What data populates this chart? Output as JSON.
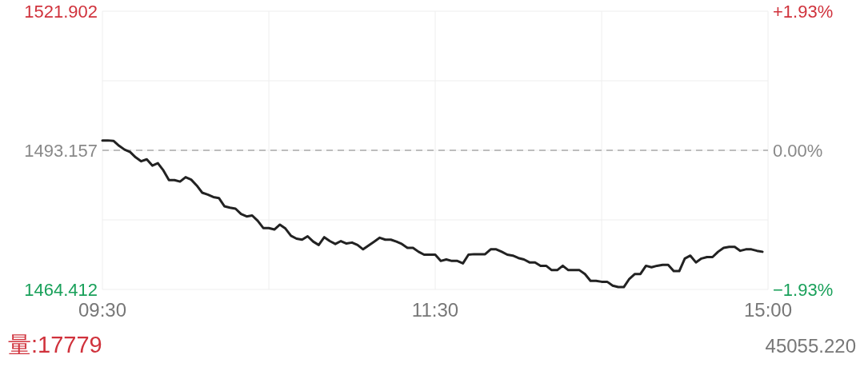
{
  "chart_data": {
    "type": "line",
    "categories": [
      "09:30",
      null,
      null,
      null,
      null,
      null,
      null,
      null,
      null,
      null,
      null,
      null,
      null,
      null,
      null,
      null,
      null,
      null,
      null,
      null,
      null,
      null,
      null,
      null,
      null,
      null,
      null,
      null,
      null,
      null,
      null,
      null,
      null,
      null,
      null,
      null,
      null,
      null,
      null,
      null,
      null,
      null,
      null,
      null,
      null,
      null,
      null,
      null,
      null,
      null,
      null,
      null,
      null,
      null,
      null,
      null,
      null,
      null,
      null,
      null,
      "11:30",
      null,
      null,
      null,
      null,
      null,
      null,
      null,
      null,
      null,
      null,
      null,
      null,
      null,
      null,
      null,
      null,
      null,
      null,
      null,
      null,
      null,
      null,
      null,
      null,
      null,
      null,
      null,
      null,
      null,
      null,
      null,
      null,
      null,
      null,
      null,
      null,
      null,
      null,
      null,
      null,
      null,
      null,
      null,
      null,
      null,
      null,
      null,
      null,
      null,
      null,
      null,
      null,
      null,
      null,
      null,
      null,
      null,
      null,
      null,
      "15:00"
    ],
    "series": [
      {
        "color": "#222222",
        "values": [
          1495.2,
          1495.2,
          1495.1,
          1494.1,
          1493.3,
          1492.8,
          1491.7,
          1490.9,
          1491.3,
          1490.0,
          1490.5,
          1489.0,
          1487.0,
          1487.0,
          1486.7,
          1487.6,
          1487.1,
          1485.9,
          1484.4,
          1484.0,
          1483.5,
          1483.3,
          1481.6,
          1481.3,
          1481.1,
          1480.0,
          1479.5,
          1479.7,
          1478.6,
          1477.1,
          1477.1,
          1476.8,
          1477.8,
          1477.0,
          1475.5,
          1474.9,
          1474.7,
          1475.4,
          1474.3,
          1473.6,
          1475.2,
          1474.4,
          1473.8,
          1474.4,
          1473.9,
          1474.1,
          1473.6,
          1472.7,
          1473.5,
          1474.3,
          1475.1,
          1474.7,
          1474.7,
          1474.3,
          1473.8,
          1473.0,
          1473.0,
          1472.2,
          1471.6,
          1471.6,
          1471.6,
          1470.3,
          1470.6,
          1470.3,
          1470.3,
          1469.8,
          1471.6,
          1471.7,
          1471.7,
          1471.7,
          1472.7,
          1472.7,
          1472.2,
          1471.6,
          1471.4,
          1470.9,
          1470.6,
          1470.0,
          1470.0,
          1469.3,
          1469.3,
          1468.4,
          1468.4,
          1469.3,
          1468.4,
          1468.4,
          1468.4,
          1467.6,
          1466.2,
          1466.2,
          1466.0,
          1466.0,
          1465.2,
          1464.9,
          1464.9,
          1466.6,
          1467.6,
          1467.6,
          1469.3,
          1469.0,
          1469.3,
          1469.5,
          1469.5,
          1468.2,
          1468.2,
          1470.8,
          1471.4,
          1470.0,
          1470.8,
          1471.1,
          1471.1,
          1472.2,
          1473.0,
          1473.2,
          1473.2,
          1472.4,
          1472.7,
          1472.7,
          1472.4,
          1472.2,
          null
        ]
      }
    ],
    "ylim": [
      1464.412,
      1521.902
    ],
    "yticks": [
      1521.902,
      1493.157,
      1464.412
    ],
    "y2lim": [
      -1.93,
      1.93
    ],
    "y2ticks": [
      {
        "value": 1.93,
        "label": "+1.93%"
      },
      {
        "value": 0,
        "label": "0.00%"
      },
      {
        "value": -1.93,
        "label": "−1.93%"
      }
    ],
    "ref_lines": [
      {
        "axis": "y",
        "value": 1493.157,
        "color": "#aaaaaa",
        "line_style": "dashed"
      }
    ],
    "grid": true,
    "marker": "none",
    "line_style": "solid",
    "annotations": [
      "量:17779",
      "45055.220"
    ]
  }
}
